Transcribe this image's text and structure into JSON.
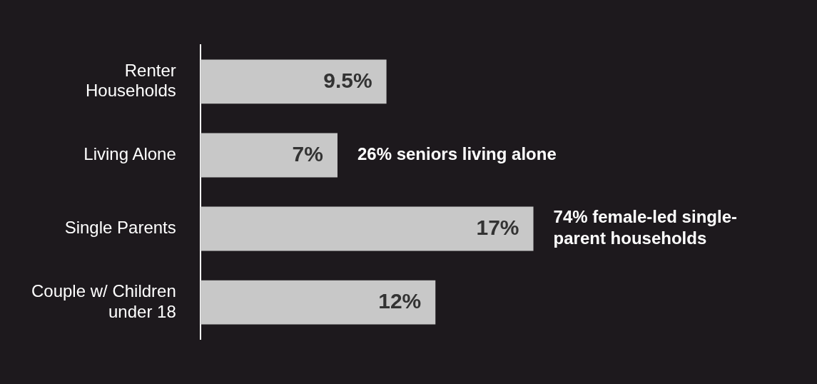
{
  "chart_data": {
    "type": "bar",
    "orientation": "horizontal",
    "categories": [
      "Renter\nHouseholds",
      "Living Alone",
      "Single Parents",
      "Couple w/ Children\nunder 18"
    ],
    "values": [
      9.5,
      7,
      17,
      12
    ],
    "value_labels": [
      "9.5%",
      "7%",
      "17%",
      "12%"
    ],
    "color": "#c8c8c8",
    "legend": false,
    "grid": false,
    "annotations": [
      {
        "text": "26% seniors living alone",
        "x": 7,
        "y": "Living Alone"
      },
      {
        "text": "74% female-led single-parent households",
        "x": 17,
        "y": "Single Parents"
      }
    ]
  }
}
